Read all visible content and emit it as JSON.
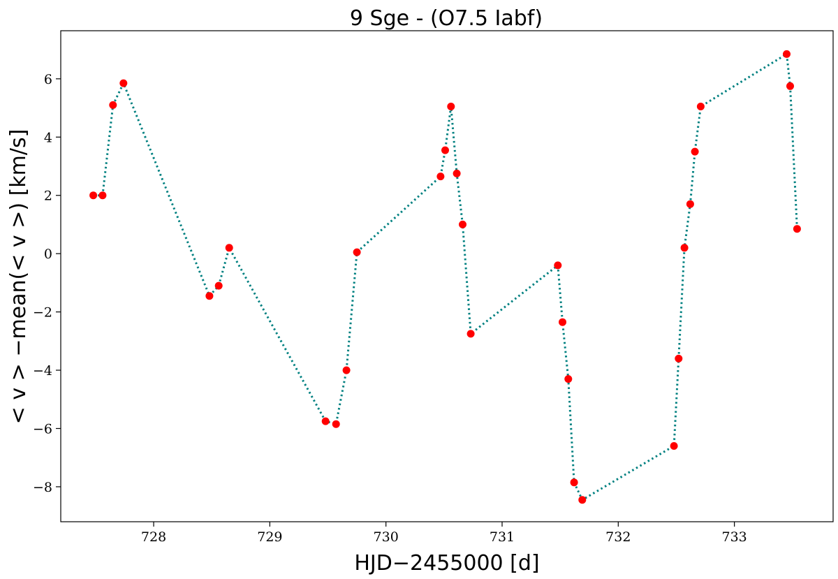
{
  "chart_data": {
    "type": "line",
    "title": "9 Sge - (O7.5 Iabf)",
    "xlabel": "HJD−2455000 [d]",
    "ylabel": "< v > −mean(< v >) [km/s]",
    "xlim": [
      727.2,
      733.85
    ],
    "ylim": [
      -9.2,
      7.65
    ],
    "xticks": [
      728,
      729,
      730,
      731,
      732,
      733
    ],
    "yticks": [
      -8,
      -6,
      -4,
      -2,
      0,
      2,
      4,
      6
    ],
    "xtick_labels": [
      "728",
      "729",
      "730",
      "731",
      "732",
      "733"
    ],
    "ytick_labels": [
      "−8",
      "−6",
      "−4",
      "−2",
      "0",
      "2",
      "4",
      "6"
    ],
    "grid": false,
    "line_style": "dotted",
    "colors": {
      "line": "#008080",
      "marker": "#ff0000"
    },
    "series": [
      {
        "x": [
          727.48,
          727.56,
          727.65,
          727.74,
          728.48,
          728.56,
          728.65,
          729.48,
          729.57,
          729.66,
          729.75,
          730.47,
          730.51,
          730.56,
          730.61,
          730.66,
          730.73,
          731.48,
          731.52,
          731.57,
          731.62,
          731.69,
          732.48,
          732.52,
          732.57,
          732.62,
          732.66,
          732.71,
          733.45,
          733.48,
          733.54
        ],
        "y": [
          2.0,
          2.0,
          5.1,
          5.85,
          -1.45,
          -1.1,
          0.2,
          -5.75,
          -5.85,
          -4.0,
          0.05,
          2.65,
          3.55,
          5.05,
          2.75,
          1.0,
          -2.75,
          -0.4,
          -2.35,
          -4.3,
          -7.85,
          -8.45,
          -6.6,
          -3.6,
          0.2,
          1.7,
          3.5,
          5.05,
          6.85,
          5.75,
          0.85
        ]
      }
    ]
  }
}
